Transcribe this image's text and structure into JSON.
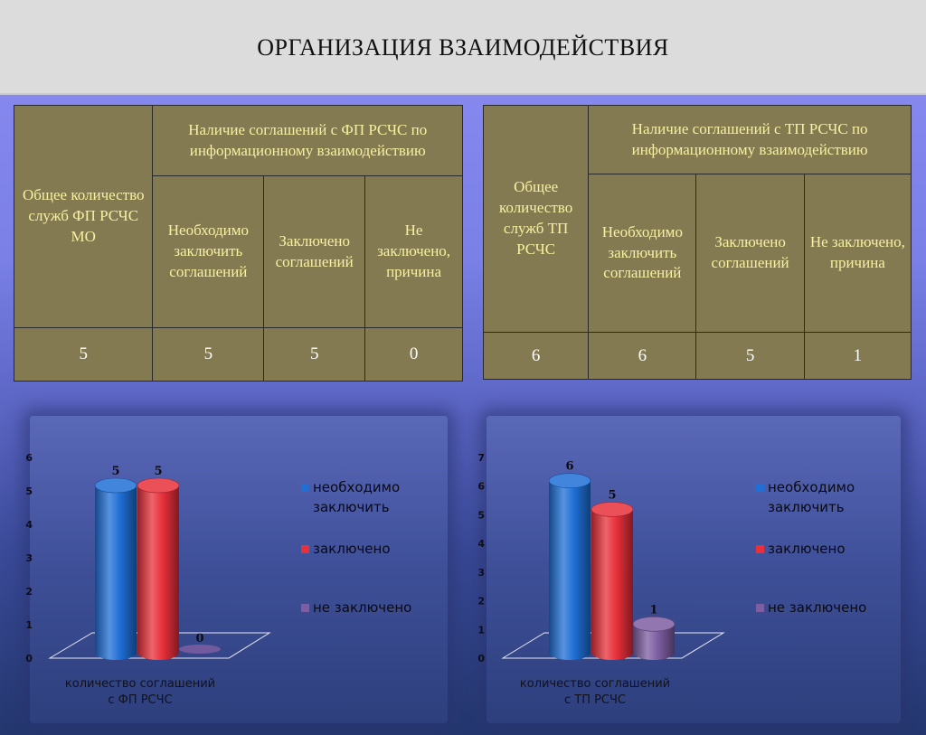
{
  "page": {
    "title": "ОРГАНИЗАЦИЯ ВЗАИМОДЕЙСТВИЯ"
  },
  "colors": {
    "blue": "#1f6fd6",
    "red": "#e8303a",
    "purple": "#7d5ea2",
    "table_bg": "#847a52",
    "table_text": "#f6f0a0"
  },
  "table_fp": {
    "total_header": "Общее количество служб ФП РСЧС МО",
    "group_header": "Наличие соглашений с ФП РСЧС по информационному взаимодействию",
    "col1": "Необходимо заключить соглашений",
    "col2": "Заключено соглашений",
    "col3": "Не заключено, причина",
    "values": [
      "5",
      "5",
      "5",
      "0"
    ]
  },
  "table_tp": {
    "total_header": "Общее количество служб ТП РСЧС",
    "group_header": "Наличие соглашений с ТП РСЧС по информационному взаимодействию",
    "col1": "Необходимо заключить соглашений",
    "col2": "Заключено соглашений",
    "col3": "Не заключено, причина",
    "values": [
      "6",
      "6",
      "5",
      "1"
    ]
  },
  "chart_data": [
    {
      "type": "bar",
      "categories": [
        "количество соглашений с ФП РСЧС"
      ],
      "caption": [
        "количество соглашений",
        "с ФП РСЧС"
      ],
      "ylim": [
        0,
        6
      ],
      "yticks": [
        "0",
        "1",
        "2",
        "3",
        "4",
        "5",
        "6"
      ],
      "legend_position": "right",
      "series": [
        {
          "name": "необходимо заключить",
          "legend_lines": [
            "необходимо",
            "заключить"
          ],
          "values": [
            5
          ],
          "color": "#1f6fd6"
        },
        {
          "name": "заключено",
          "legend_lines": [
            "заключено"
          ],
          "values": [
            5
          ],
          "color": "#e8303a"
        },
        {
          "name": "не заключено",
          "legend_lines": [
            "не заключено"
          ],
          "values": [
            0
          ],
          "color": "#7d5ea2"
        }
      ]
    },
    {
      "type": "bar",
      "categories": [
        "количество соглашений с ТП РСЧС"
      ],
      "caption": [
        "количество соглашений",
        "с ТП РСЧС"
      ],
      "ylim": [
        0,
        7
      ],
      "yticks": [
        "0",
        "1",
        "2",
        "3",
        "4",
        "5",
        "6",
        "7"
      ],
      "legend_position": "right",
      "series": [
        {
          "name": "необходимо заключить",
          "legend_lines": [
            "необходимо",
            "заключить"
          ],
          "values": [
            6
          ],
          "color": "#1f6fd6"
        },
        {
          "name": "заключено",
          "legend_lines": [
            "заключено"
          ],
          "values": [
            5
          ],
          "color": "#e8303a"
        },
        {
          "name": "не заключено",
          "legend_lines": [
            "не заключено"
          ],
          "values": [
            1
          ],
          "color": "#7d5ea2"
        }
      ]
    }
  ]
}
